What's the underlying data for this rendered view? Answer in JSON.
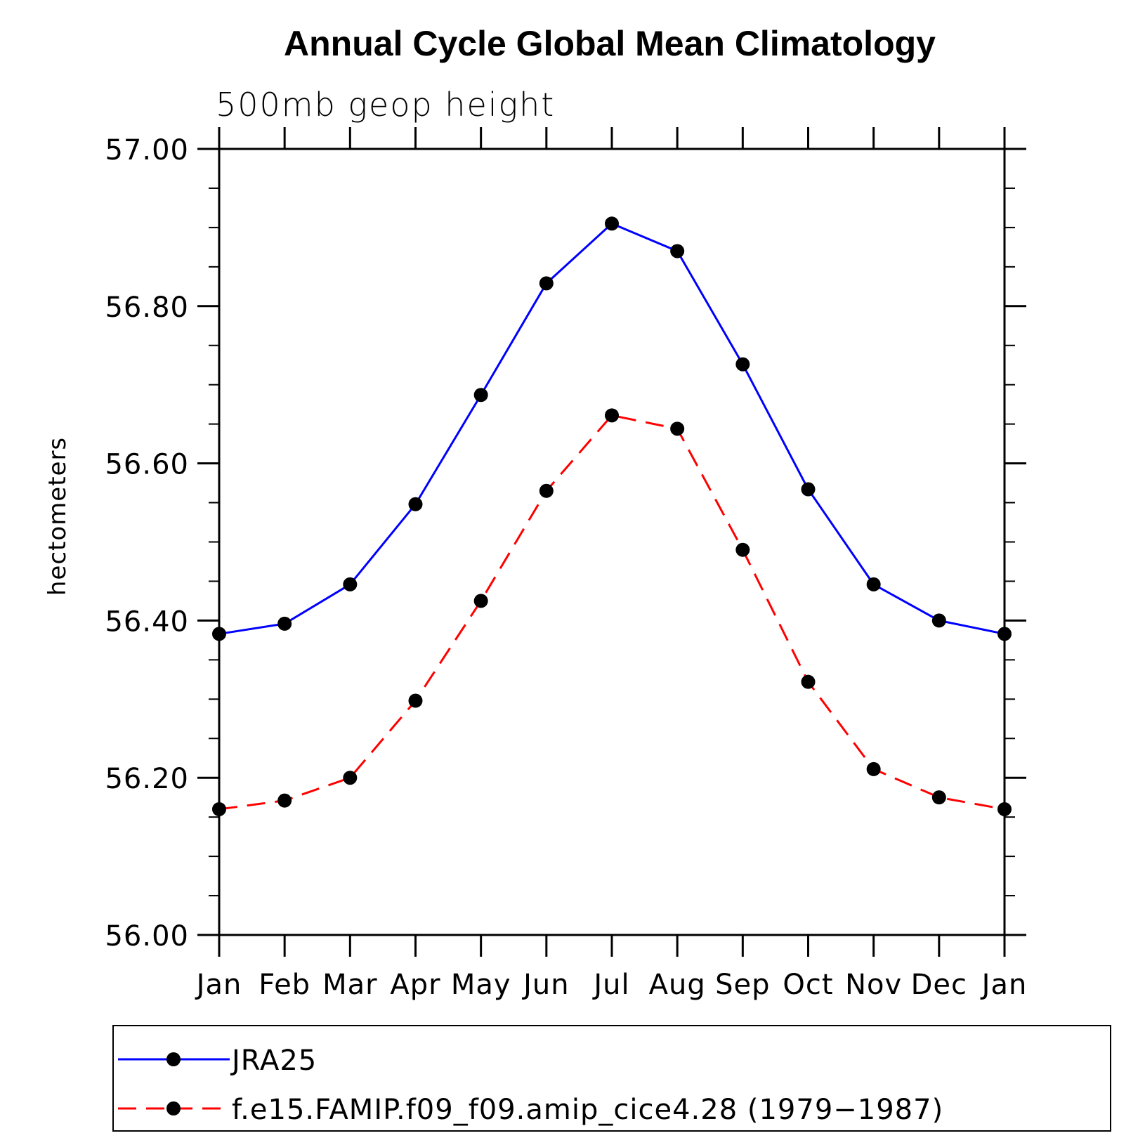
{
  "chart_data": {
    "type": "line",
    "title": "Annual Cycle Global Mean Climatology",
    "subtitle": "500mb geop height",
    "ylabel": "hectometers",
    "xlabel": "",
    "categories": [
      "Jan",
      "Feb",
      "Mar",
      "Apr",
      "May",
      "Jun",
      "Jul",
      "Aug",
      "Sep",
      "Oct",
      "Nov",
      "Dec",
      "Jan"
    ],
    "ylim": [
      56.0,
      57.0
    ],
    "yticks": [
      "56.00",
      "56.20",
      "56.40",
      "56.60",
      "56.80",
      "57.00"
    ],
    "grid": false,
    "legend_position": "bottom",
    "series": [
      {
        "name": "JRA25",
        "color": "#0000ff",
        "line_style": "solid",
        "marker": "filled-circle",
        "values": [
          56.383,
          56.396,
          56.446,
          56.548,
          56.687,
          56.829,
          56.905,
          56.87,
          56.726,
          56.567,
          56.446,
          56.4,
          56.383
        ]
      },
      {
        "name": "f.e15.FAMIP.f09_f09.amip_cice4.28 (1979−1987)",
        "color": "#ff0000",
        "line_style": "dashed",
        "marker": "filled-circle",
        "values": [
          56.16,
          56.171,
          56.2,
          56.298,
          56.425,
          56.565,
          56.661,
          56.644,
          56.49,
          56.322,
          56.211,
          56.175,
          56.16
        ]
      }
    ]
  }
}
